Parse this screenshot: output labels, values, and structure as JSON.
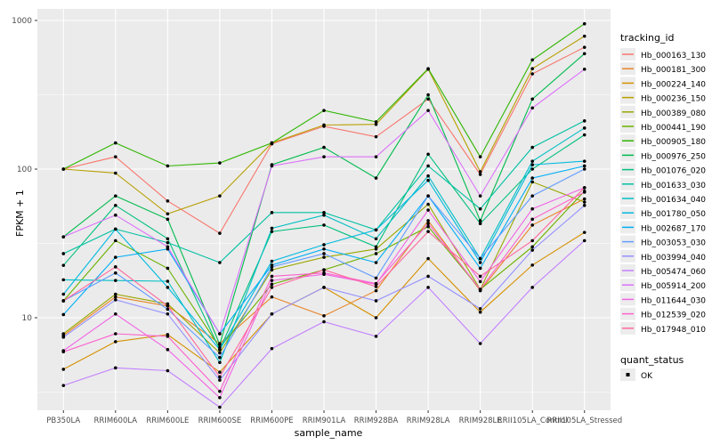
{
  "axes": {
    "y_label": "FPKM + 1",
    "x_label": "sample_name",
    "y_tick_labels": [
      "1000",
      "100",
      "10"
    ]
  },
  "legend": {
    "tracking_title": "tracking_id",
    "quant_title": "quant_status",
    "quant_items": [
      {
        "label": "OK",
        "marker_color": "#000000"
      }
    ]
  },
  "chart_data": {
    "type": "line",
    "title": "",
    "xlabel": "sample_name",
    "ylabel": "FPKM + 1",
    "y_scale": "log10",
    "ylim": [
      2.2,
      1200
    ],
    "y_major_ticks": [
      10,
      100,
      1000
    ],
    "y_minor_ticks": [
      3.162,
      31.62,
      316.2
    ],
    "grid": "white-on-grey",
    "panel_bg": "#EBEBEB",
    "legend_position": "right",
    "point_color": "#000000",
    "categories": [
      "PB350LA",
      "RRIM600LA",
      "RRIM600LE",
      "RRIM600SE",
      "RRIM600PE",
      "RRIM901LA",
      "RRIM928BA",
      "RRIM928LA",
      "RRIM928LE",
      "RRII105LA_Control",
      "RRII105LA_Stressed"
    ],
    "series": [
      {
        "name": "Hb_000163_130",
        "color": "#F8766D",
        "values": [
          100,
          121,
          61,
          37,
          148,
          194,
          165,
          296,
          92,
          437,
          660
        ]
      },
      {
        "name": "Hb_000181_300",
        "color": "#E88526",
        "values": [
          7.6,
          13.8,
          12,
          6.7,
          13.8,
          10.3,
          15.2,
          45,
          15.2,
          42,
          63
        ]
      },
      {
        "name": "Hb_000224_140",
        "color": "#D59100",
        "values": [
          4.5,
          6.9,
          7.7,
          4.3,
          10.6,
          16,
          10,
          25,
          10.9,
          22.6,
          37.5
        ]
      },
      {
        "name": "Hb_000236_150",
        "color": "#B79F00",
        "values": [
          100,
          94,
          50,
          66,
          150,
          198,
          200,
          470,
          96,
          474,
          784
        ]
      },
      {
        "name": "Hb_000389_080",
        "color": "#99A800",
        "values": [
          7.8,
          14.4,
          12.4,
          5.8,
          21,
          25.5,
          29,
          58,
          15.5,
          82,
          60
        ]
      },
      {
        "name": "Hb_000441_190",
        "color": "#6BB100",
        "values": [
          13,
          33,
          21.5,
          6.3,
          16.8,
          21,
          27,
          41,
          15.5,
          30,
          71
        ]
      },
      {
        "name": "Hb_000905_180",
        "color": "#2FB600",
        "values": [
          100,
          150,
          105,
          110,
          150,
          248,
          208,
          474,
          121,
          543,
          950
        ]
      },
      {
        "name": "Hb_000976_250",
        "color": "#00BB4E",
        "values": [
          35,
          66,
          46,
          6.6,
          107,
          140,
          87,
          316,
          45,
          296,
          598
        ]
      },
      {
        "name": "Hb_001076_020",
        "color": "#00C07D",
        "values": [
          22.5,
          57,
          34,
          6.1,
          38,
          42,
          30,
          126,
          43,
          100,
          170
        ]
      },
      {
        "name": "Hb_001633_030",
        "color": "#00C1A3",
        "values": [
          27,
          39.5,
          32,
          23.5,
          51,
          51,
          39,
          105,
          54,
          140,
          211
        ]
      },
      {
        "name": "Hb_001634_040",
        "color": "#00BFC4",
        "values": [
          18,
          17.8,
          17.6,
          5,
          40,
          49,
          34,
          90,
          25,
          113,
          189
        ]
      },
      {
        "name": "Hb_001780_050",
        "color": "#00BADE",
        "values": [
          14.4,
          39.5,
          16,
          6.1,
          24,
          31,
          39,
          84,
          23.5,
          107,
          113
        ]
      },
      {
        "name": "Hb_002687_170",
        "color": "#00AFF6",
        "values": [
          10.5,
          25.5,
          29,
          7.8,
          22.6,
          29,
          23.5,
          66,
          21.5,
          87,
          105
        ]
      },
      {
        "name": "Hb_003053_030",
        "color": "#619CFF",
        "values": [
          13,
          20,
          11.4,
          5.4,
          22,
          27,
          18.5,
          66,
          25,
          66,
          100
        ]
      },
      {
        "name": "Hb_003994_040",
        "color": "#9590FF",
        "values": [
          7.4,
          13.2,
          10.6,
          3.8,
          10.6,
          16,
          13,
          19,
          11.5,
          28.5,
          57
        ]
      },
      {
        "name": "Hb_005474_060",
        "color": "#C27FFF",
        "values": [
          3.5,
          4.6,
          4.4,
          2.5,
          6.2,
          9.4,
          7.5,
          16,
          6.7,
          16,
          33
        ]
      },
      {
        "name": "Hb_005914_200",
        "color": "#DC71FA",
        "values": [
          35,
          49,
          30,
          7.8,
          105,
          121,
          121,
          248,
          66,
          258,
          470
        ]
      },
      {
        "name": "Hb_011644_030",
        "color": "#F165E5",
        "values": [
          6,
          10.6,
          6.1,
          2.9,
          17.8,
          19.6,
          16.8,
          53,
          17.5,
          54,
          75
        ]
      },
      {
        "name": "Hb_012539_020",
        "color": "#FC61CE",
        "values": [
          5.9,
          7.8,
          7.5,
          3.2,
          19,
          20,
          17,
          43,
          15.5,
          46,
          70
        ]
      },
      {
        "name": "Hb_017948_010",
        "color": "#FF689E",
        "values": [
          13,
          22,
          12,
          4,
          16,
          21,
          16.2,
          38,
          19,
          33,
          75
        ]
      }
    ]
  }
}
